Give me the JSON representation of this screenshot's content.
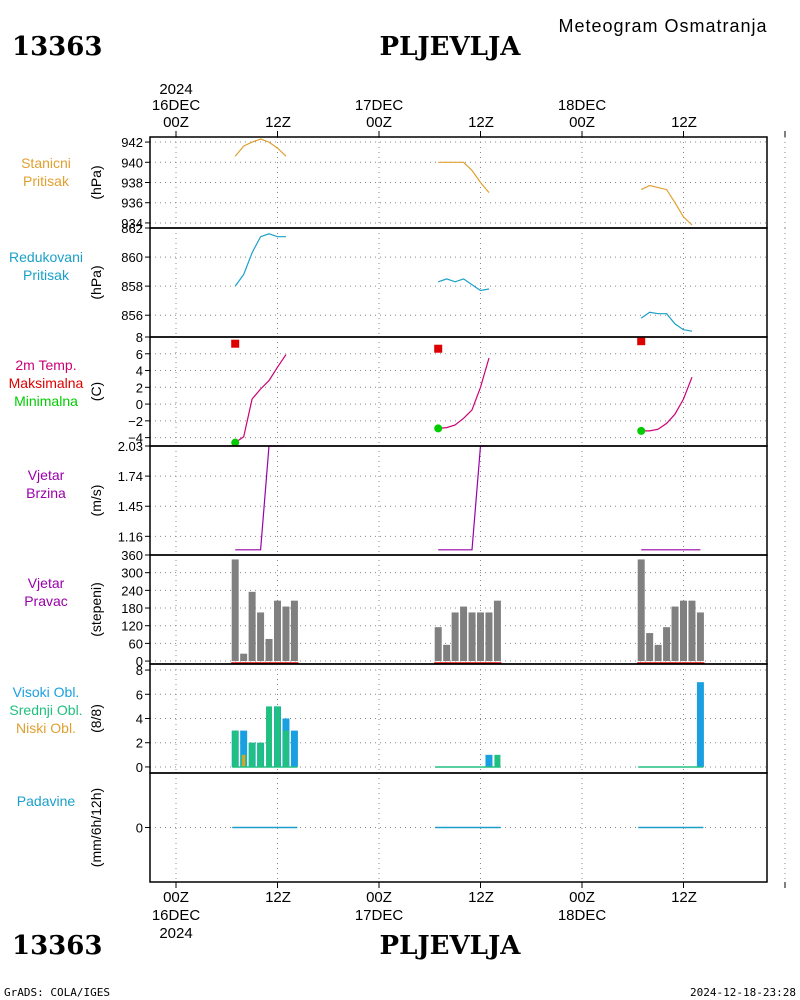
{
  "header": {
    "title_right": "Meteogram Osmatranja",
    "station_id": "13363",
    "station_name": "PLJEVLJA"
  },
  "footer": {
    "left": "GrADS: COLA/IGES",
    "right": "2024-12-18-23:28"
  },
  "time_axis": {
    "top_year": "2024",
    "top_days": [
      "16DEC",
      "17DEC",
      "18DEC"
    ],
    "top_hours": [
      "00Z",
      "12Z",
      "00Z",
      "12Z",
      "00Z",
      "12Z"
    ],
    "bottom_hours": [
      "00Z",
      "12Z",
      "00Z",
      "12Z",
      "00Z",
      "12Z"
    ],
    "bottom_days": [
      "16DEC",
      "17DEC",
      "18DEC"
    ],
    "bottom_year": "2024"
  },
  "colors": {
    "pressure": "#e0a030",
    "reduced": "#1aa0c8",
    "tmax": "#dd0000",
    "tmin": "#00cc00",
    "temp_line": "#cc0077",
    "wind": "#9900aa",
    "bar_gray": "#808080",
    "bar_red": "#dd0000",
    "cloud_high": "#1aa0e0",
    "cloud_mid": "#20c080",
    "cloud_low": "#e0a030",
    "precip": "#1aa0c8"
  },
  "panels": {
    "station_pressure": {
      "labels": [
        "Stanicni",
        "Pritisak"
      ],
      "unit": "(hPa)",
      "ticks": [
        "942",
        "940",
        "938",
        "936",
        "934"
      ]
    },
    "reduced_pressure": {
      "labels": [
        "Redukovani",
        "Pritisak"
      ],
      "unit": "(hPa)",
      "ticks": [
        "862",
        "860",
        "858",
        "856"
      ]
    },
    "temperature": {
      "labels": [
        "2m Temp.",
        "Maksimalna",
        "Minimalna"
      ],
      "unit": "(C)",
      "ticks": [
        "8",
        "6",
        "4",
        "2",
        "0",
        "−2",
        "−4"
      ]
    },
    "wind_speed": {
      "labels": [
        "Vjetar",
        "Brzina"
      ],
      "unit": "(m/s)",
      "ticks": [
        "2.03",
        "1.74",
        "1.45",
        "1.16"
      ]
    },
    "wind_dir": {
      "labels": [
        "Vjetar",
        "Pravac"
      ],
      "unit": "(stepeni)",
      "ticks": [
        "360",
        "300",
        "240",
        "180",
        "120",
        "60",
        "0"
      ]
    },
    "clouds": {
      "labels": [
        "Visoki Obl.",
        "Srednji Obl.",
        "Niski Obl."
      ],
      "unit": "(8/8)",
      "ticks": [
        "8",
        "6",
        "4",
        "2",
        "0"
      ]
    },
    "precip": {
      "labels": [
        "Padavine"
      ],
      "unit": "(mm/6h/12h)",
      "ticks": [
        "0"
      ]
    }
  },
  "chart_data": [
    {
      "type": "line",
      "panel": "station_pressure",
      "ylim": [
        933.5,
        942.5
      ],
      "series": [
        {
          "x": [
            7,
            8,
            9,
            10,
            11,
            12,
            13
          ],
          "values": [
            940.6,
            941.6,
            942.0,
            942.3,
            942.0,
            941.4,
            940.6
          ]
        },
        {
          "x": [
            31,
            32,
            33,
            34,
            35,
            36,
            37
          ],
          "values": [
            940.0,
            940.0,
            940.0,
            940.0,
            939.2,
            938.0,
            937.0
          ]
        },
        {
          "x": [
            55,
            56,
            57,
            58,
            59,
            60,
            61
          ],
          "values": [
            937.3,
            937.7,
            937.5,
            937.3,
            936.0,
            934.6,
            933.8
          ]
        }
      ]
    },
    {
      "type": "line",
      "panel": "reduced_pressure",
      "ylim": [
        854.5,
        862
      ],
      "series": [
        {
          "x": [
            7,
            8,
            9,
            10,
            11,
            12,
            13
          ],
          "values": [
            858.0,
            858.8,
            860.3,
            861.4,
            861.6,
            861.4,
            861.4
          ]
        },
        {
          "x": [
            31,
            32,
            33,
            34,
            35,
            36,
            37
          ],
          "values": [
            858.3,
            858.5,
            858.3,
            858.5,
            858.1,
            857.7,
            857.8
          ]
        },
        {
          "x": [
            55,
            56,
            57,
            58,
            59,
            60,
            61
          ],
          "values": [
            855.8,
            856.2,
            856.1,
            856.1,
            855.4,
            855.0,
            854.9
          ]
        }
      ]
    },
    {
      "type": "line",
      "panel": "temperature",
      "ylim": [
        -5,
        8
      ],
      "series": [
        {
          "x": [
            7,
            8,
            9,
            10,
            11,
            12,
            13
          ],
          "values": [
            -4.6,
            -3.9,
            0.6,
            1.8,
            2.8,
            4.4,
            5.9
          ]
        },
        {
          "x": [
            31,
            32,
            33,
            34,
            35,
            36,
            37
          ],
          "values": [
            -2.9,
            -2.8,
            -2.5,
            -1.7,
            -0.7,
            2.0,
            5.5
          ]
        },
        {
          "x": [
            55,
            56,
            57,
            58,
            59,
            60,
            61
          ],
          "values": [
            -3.2,
            -3.2,
            -3.0,
            -2.3,
            -1.2,
            0.6,
            3.2
          ]
        }
      ],
      "tmax": [
        {
          "x": 7,
          "value": 7.2
        },
        {
          "x": 31,
          "value": 6.6
        },
        {
          "x": 55,
          "value": 7.5
        }
      ],
      "tmin": [
        {
          "x": 7,
          "value": -4.6
        },
        {
          "x": 31,
          "value": -2.9
        },
        {
          "x": 55,
          "value": -3.2
        }
      ]
    },
    {
      "type": "line",
      "panel": "wind_speed",
      "ylim": [
        0.98,
        2.03
      ],
      "series": [
        {
          "x": [
            7,
            8,
            9,
            10,
            11,
            12,
            13
          ],
          "values": [
            1.03,
            1.03,
            1.03,
            1.03,
            2.03,
            2.03,
            2.03
          ]
        },
        {
          "x": [
            31,
            32,
            33,
            34,
            35,
            36,
            37
          ],
          "values": [
            1.03,
            1.03,
            1.03,
            1.03,
            1.03,
            2.03,
            2.03
          ]
        },
        {
          "x": [
            55,
            56,
            57,
            58,
            59,
            60,
            61,
            62
          ],
          "values": [
            1.03,
            1.03,
            1.03,
            1.03,
            1.03,
            1.03,
            1.03,
            1.03
          ]
        }
      ]
    },
    {
      "type": "bar",
      "panel": "wind_dir",
      "ylim": [
        -10,
        360
      ],
      "groups": [
        {
          "x": [
            7,
            8,
            9,
            10,
            11,
            12,
            13,
            14
          ],
          "values": [
            345,
            25,
            235,
            165,
            75,
            205,
            185,
            205
          ]
        },
        {
          "x": [
            31,
            32,
            33,
            34,
            35,
            36,
            37,
            38
          ],
          "values": [
            115,
            55,
            165,
            185,
            165,
            165,
            165,
            205
          ]
        },
        {
          "x": [
            55,
            56,
            57,
            58,
            59,
            60,
            61,
            62
          ],
          "values": [
            345,
            95,
            55,
            115,
            185,
            205,
            205,
            165
          ]
        }
      ],
      "red_line": [
        [
          7,
          14
        ],
        [
          31,
          38
        ],
        [
          55,
          62
        ]
      ]
    },
    {
      "type": "bar",
      "panel": "clouds",
      "ylim": [
        -0.5,
        8.5
      ],
      "bars": [
        {
          "x": 7,
          "high": 3,
          "mid": 3,
          "low": 0
        },
        {
          "x": 8,
          "high": 3,
          "mid": 1,
          "low": 1
        },
        {
          "x": 9,
          "high": 2,
          "mid": 2,
          "low": 0
        },
        {
          "x": 10,
          "high": 2,
          "mid": 2,
          "low": 0
        },
        {
          "x": 11,
          "high": 0,
          "mid": 5,
          "low": 0
        },
        {
          "x": 12,
          "high": 5,
          "mid": 5,
          "low": 0
        },
        {
          "x": 13,
          "high": 4,
          "mid": 3,
          "low": 0
        },
        {
          "x": 14,
          "high": 3,
          "mid": 0,
          "low": 0
        },
        {
          "x": 37,
          "high": 1,
          "mid": 0,
          "low": 0
        },
        {
          "x": 38,
          "high": 0,
          "mid": 1,
          "low": 0
        },
        {
          "x": 62,
          "high": 7,
          "mid": 0,
          "low": 0
        }
      ]
    },
    {
      "type": "bar",
      "panel": "precip",
      "ylim": [
        -1,
        1
      ],
      "groups": [
        [
          7,
          14
        ],
        [
          31,
          38
        ],
        [
          55,
          62
        ]
      ],
      "values": [
        0,
        0,
        0
      ]
    }
  ]
}
